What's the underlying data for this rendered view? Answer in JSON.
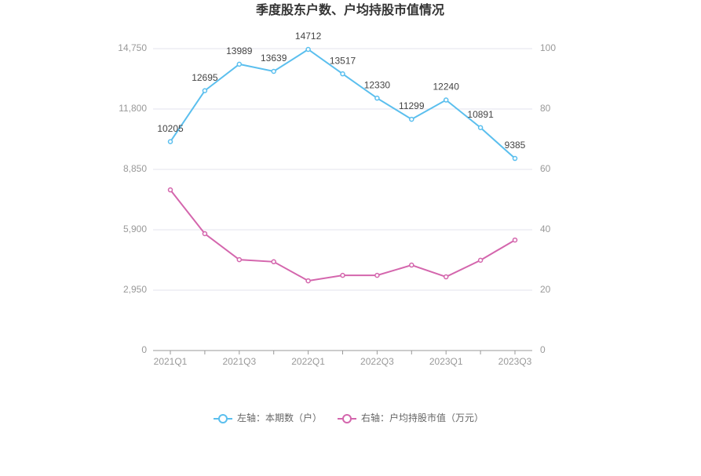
{
  "chart_data": {
    "type": "line",
    "title": "季度股东户数、户均持股市值情况",
    "categories": [
      "2021Q1",
      null,
      "2021Q3",
      null,
      "2022Q1",
      null,
      "2022Q3",
      null,
      "2023Q1",
      null,
      "2023Q3"
    ],
    "series": [
      {
        "name": "左轴：本期数（户）",
        "color": "#5bbfee",
        "values": [
          10205,
          12695,
          13989,
          13639,
          14712,
          13517,
          12330,
          11299,
          12240,
          10891,
          9385
        ]
      },
      {
        "name": "右轴：户均持股市值（万元）",
        "color": "#d466ad",
        "axis": "y2",
        "values": [
          53.2,
          38.7,
          30.1,
          29.4,
          23.1,
          24.9,
          24.9,
          28.3,
          24.4,
          29.9,
          36.6
        ]
      }
    ],
    "ylim": [
      0,
      14750
    ],
    "yticks": [
      0,
      {
        "value": 2950,
        "label": "2,950"
      },
      {
        "value": 5900,
        "label": "5,900"
      },
      {
        "value": 8850,
        "label": "8,850"
      },
      {
        "value": 11800,
        "label": "11,800"
      },
      {
        "value": 14750,
        "label": "14,750"
      }
    ],
    "y2lim": [
      0,
      100
    ],
    "y2ticks": [
      0,
      20,
      40,
      60,
      80,
      100
    ],
    "grid": true,
    "legend": "bottom"
  }
}
